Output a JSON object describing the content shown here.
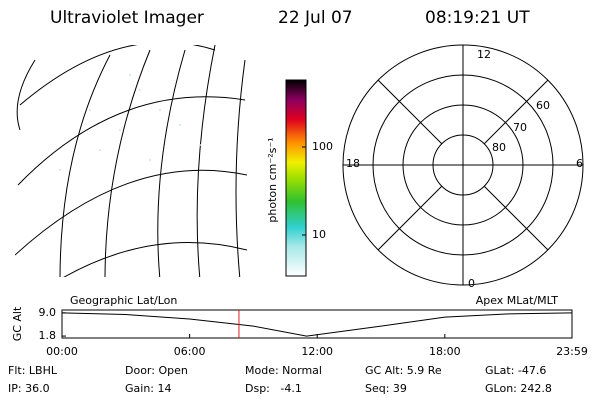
{
  "header": {
    "instrument": "Ultraviolet Imager",
    "date": "22 Jul 07",
    "time": "08:19:21 UT"
  },
  "geographic": {
    "title": "Geographic Lat/Lon"
  },
  "colorbar": {
    "unit": "photon cm⁻²s⁻¹",
    "labels": [
      "100",
      "10"
    ]
  },
  "apex": {
    "title": "Apex MLat/MLT",
    "mlt_labels": [
      "12",
      "18",
      "6",
      "0"
    ],
    "mlat_labels": [
      "60",
      "70",
      "80"
    ]
  },
  "chart_data": {
    "type": "line",
    "y_label": "GC Alt",
    "x": [
      0,
      3,
      6,
      9,
      11.5,
      15,
      18,
      21,
      23.98
    ],
    "values": [
      9.0,
      8.5,
      7.1,
      4.9,
      1.8,
      4.9,
      7.7,
      8.7,
      9.0
    ],
    "color": "#000000",
    "xlim": [
      0,
      23.98
    ],
    "ylim": [
      1.2,
      9.9
    ],
    "xticks": [
      {
        "value": 0,
        "label": "00:00"
      },
      {
        "value": 6,
        "label": "06:00"
      },
      {
        "value": 12,
        "label": "12:00"
      },
      {
        "value": 18,
        "label": "18:00"
      },
      {
        "value": 23.98,
        "label": "23:59"
      }
    ],
    "yticks": [
      {
        "value": 9,
        "label": "9.0"
      },
      {
        "value": 1.8,
        "label": "1.8"
      }
    ],
    "time_marker": 8.32,
    "marker_color": "#e02020"
  },
  "info": {
    "rows": [
      [
        "Flt: LBHL",
        "Door: Open",
        "Mode: Normal",
        "GC Alt: 5.9 Re",
        "GLat: -47.6"
      ],
      [
        "IP: 36.0",
        "Gain: 14",
        "Dsp:   -4.1",
        "Seq: 39",
        "GLon: 242.8"
      ]
    ]
  }
}
